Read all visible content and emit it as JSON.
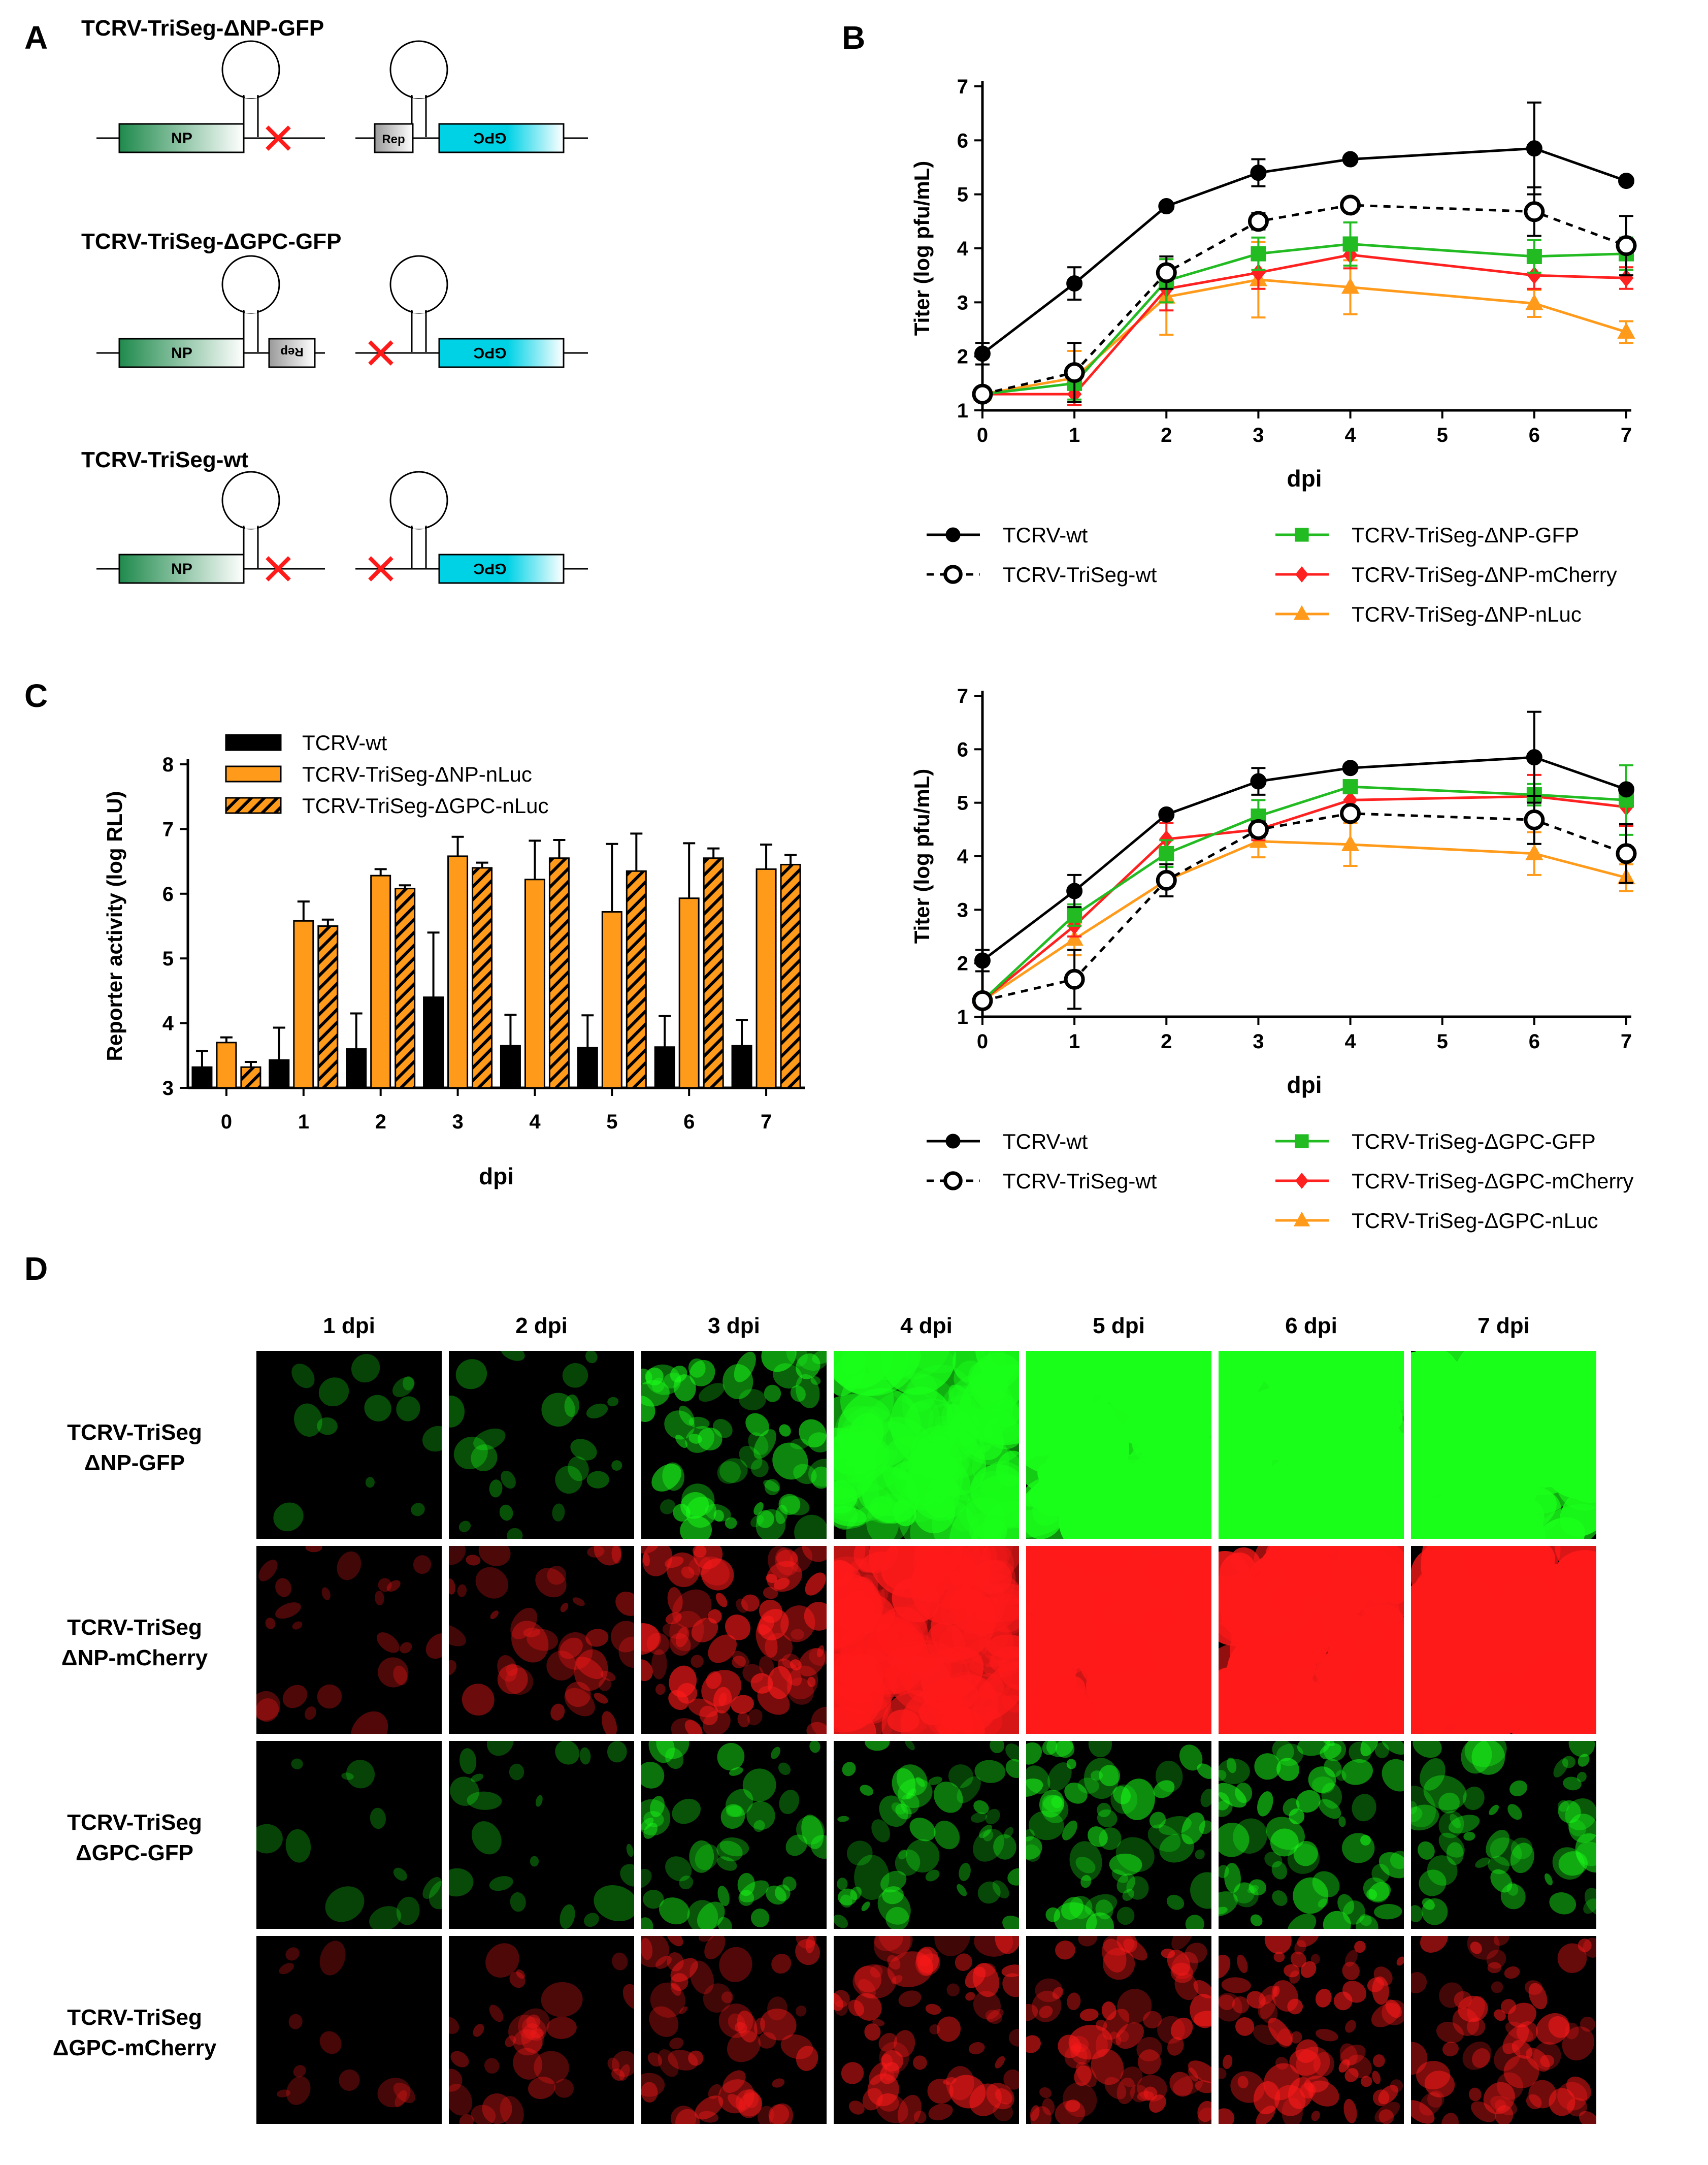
{
  "figure": {
    "panels": {
      "A": {
        "label": "A"
      },
      "B": {
        "label": "B"
      },
      "C": {
        "label": "C"
      },
      "D": {
        "label": "D"
      }
    }
  },
  "panelA": {
    "constructs": [
      {
        "title": "TCRV-TriSeg-ΔNP-GFP",
        "seg1": {
          "main": "NP",
          "main_color": "#1f8a4c",
          "tail": "",
          "tail_color": "",
          "cross_left": false,
          "cross_right": true
        },
        "seg2": {
          "main": "GPC",
          "main_color": "#00d2e6",
          "tail": "Rep",
          "tail_color": "#8a8a8a",
          "cross_left": false,
          "cross_right": false
        }
      },
      {
        "title": "TCRV-TriSeg-ΔGPC-GFP",
        "seg1": {
          "main": "NP",
          "main_color": "#1f8a4c",
          "tail": "Rep",
          "tail_color": "#8a8a8a",
          "cross_left": false,
          "cross_right": false
        },
        "seg2": {
          "main": "GPC",
          "main_color": "#00d2e6",
          "tail": "",
          "tail_color": "",
          "cross_left": true,
          "cross_right": false
        }
      },
      {
        "title": "TCRV-TriSeg-wt",
        "seg1": {
          "main": "NP",
          "main_color": "#1f8a4c",
          "tail": "",
          "tail_color": "",
          "cross_left": false,
          "cross_right": true
        },
        "seg2": {
          "main": "GPC",
          "main_color": "#00d2e6",
          "tail": "",
          "tail_color": "",
          "cross_left": true,
          "cross_right": false
        }
      }
    ],
    "cross_color": "#ff1a1a"
  },
  "chart_data": [
    {
      "id": "B-top",
      "type": "line",
      "title": "",
      "xlabel": "dpi",
      "ylabel": "Titer (log pfu/mL)",
      "x": [
        0,
        1,
        2,
        3,
        4,
        6,
        7
      ],
      "xticks": [
        0,
        1,
        2,
        3,
        4,
        5,
        6,
        7
      ],
      "xlim": [
        0,
        7
      ],
      "ylim": [
        1,
        7
      ],
      "yticks": [
        1,
        2,
        3,
        4,
        5,
        6,
        7
      ],
      "legend_position": "bottom",
      "series": [
        {
          "name": "TCRV-wt",
          "color": "#000000",
          "marker": "circle",
          "dashed": false,
          "hollow": false,
          "values": [
            2.05,
            3.35,
            4.78,
            5.4,
            5.65,
            5.85,
            5.25
          ],
          "errors": [
            0.2,
            0.3,
            0.05,
            0.25,
            0.05,
            0.85,
            0.05
          ]
        },
        {
          "name": "TCRV-TriSeg-wt",
          "color": "#000000",
          "marker": "circle",
          "dashed": true,
          "hollow": true,
          "values": [
            1.3,
            1.7,
            3.55,
            4.5,
            4.8,
            4.68,
            4.05
          ],
          "errors": [
            0.0,
            0.55,
            0.3,
            0.15,
            0.05,
            0.45,
            0.55
          ]
        },
        {
          "name": "TCRV-TriSeg-ΔNP-GFP",
          "color": "#22bb22",
          "marker": "square",
          "dashed": false,
          "hollow": false,
          "values": [
            1.3,
            1.5,
            3.4,
            3.9,
            4.08,
            3.85,
            3.9
          ],
          "errors": [
            0.0,
            0.3,
            0.4,
            0.3,
            0.4,
            0.3,
            0.3
          ]
        },
        {
          "name": "TCRV-TriSeg-ΔNP-mCherry",
          "color": "#ff2020",
          "marker": "diamond",
          "dashed": false,
          "hollow": false,
          "values": [
            1.3,
            1.3,
            3.25,
            3.55,
            3.88,
            3.5,
            3.45
          ],
          "errors": [
            0.0,
            0.2,
            0.4,
            0.3,
            0.25,
            0.25,
            0.2
          ]
        },
        {
          "name": "TCRV-TriSeg-ΔNP-nLuc",
          "color": "#ff9a1a",
          "marker": "triangle",
          "dashed": false,
          "hollow": false,
          "values": [
            1.3,
            1.6,
            3.1,
            3.42,
            3.28,
            2.98,
            2.45
          ],
          "errors": [
            0.0,
            0.5,
            0.7,
            0.7,
            0.5,
            0.25,
            0.2
          ]
        }
      ]
    },
    {
      "id": "B-bottom",
      "type": "line",
      "title": "",
      "xlabel": "dpi",
      "ylabel": "Titer (log pfu/mL)",
      "x": [
        0,
        1,
        2,
        3,
        4,
        6,
        7
      ],
      "xticks": [
        0,
        1,
        2,
        3,
        4,
        5,
        6,
        7
      ],
      "xlim": [
        0,
        7
      ],
      "ylim": [
        1,
        7
      ],
      "yticks": [
        1,
        2,
        3,
        4,
        5,
        6,
        7
      ],
      "legend_position": "bottom",
      "series": [
        {
          "name": "TCRV-wt",
          "color": "#000000",
          "marker": "circle",
          "dashed": false,
          "hollow": false,
          "values": [
            2.05,
            3.35,
            4.78,
            5.4,
            5.65,
            5.85,
            5.25
          ],
          "errors": [
            0.2,
            0.3,
            0.05,
            0.25,
            0.05,
            0.85,
            0.05
          ]
        },
        {
          "name": "TCRV-TriSeg-wt",
          "color": "#000000",
          "marker": "circle",
          "dashed": true,
          "hollow": true,
          "values": [
            1.3,
            1.7,
            3.55,
            4.5,
            4.8,
            4.68,
            4.05
          ],
          "errors": [
            0.0,
            0.55,
            0.3,
            0.15,
            0.05,
            0.45,
            0.55
          ]
        },
        {
          "name": "TCRV-TriSeg-ΔGPC-GFP",
          "color": "#22bb22",
          "marker": "square",
          "dashed": false,
          "hollow": false,
          "values": [
            1.3,
            2.9,
            4.05,
            4.75,
            5.3,
            5.15,
            5.05
          ],
          "errors": [
            0.0,
            0.2,
            0.25,
            0.3,
            0.05,
            0.2,
            0.65
          ]
        },
        {
          "name": "TCRV-TriSeg-ΔGPC-mCherry",
          "color": "#ff2020",
          "marker": "diamond",
          "dashed": false,
          "hollow": false,
          "values": [
            1.3,
            2.7,
            4.32,
            4.5,
            5.05,
            5.12,
            4.92
          ],
          "errors": [
            0.0,
            0.2,
            0.3,
            0.2,
            0.3,
            0.4,
            0.35
          ]
        },
        {
          "name": "TCRV-TriSeg-ΔGPC-nLuc",
          "color": "#ff9a1a",
          "marker": "triangle",
          "dashed": false,
          "hollow": false,
          "values": [
            1.3,
            2.45,
            3.55,
            4.28,
            4.22,
            4.05,
            3.6
          ],
          "errors": [
            0.0,
            0.3,
            0.3,
            0.3,
            0.4,
            0.4,
            0.25
          ]
        }
      ]
    },
    {
      "id": "C",
      "type": "bar",
      "title": "",
      "xlabel": "dpi",
      "ylabel": "Reporter activity (log RLU)",
      "categories": [
        "0",
        "1",
        "2",
        "3",
        "4",
        "5",
        "6",
        "7"
      ],
      "ylim": [
        3,
        8
      ],
      "yticks": [
        3,
        4,
        5,
        6,
        7,
        8
      ],
      "legend_position": "top",
      "series": [
        {
          "name": "TCRV-wt",
          "color": "#000000",
          "hatched": false,
          "values": [
            3.32,
            3.43,
            3.6,
            4.4,
            3.65,
            3.62,
            3.63,
            3.65
          ],
          "errors": [
            0.25,
            0.5,
            0.55,
            1.0,
            0.48,
            0.5,
            0.48,
            0.4
          ]
        },
        {
          "name": "TCRV-TriSeg-ΔNP-nLuc",
          "color": "#ff9a1a",
          "hatched": false,
          "values": [
            3.7,
            5.58,
            6.28,
            6.58,
            6.22,
            5.72,
            5.93,
            6.38
          ],
          "errors": [
            0.08,
            0.3,
            0.1,
            0.3,
            0.6,
            1.05,
            0.85,
            0.38
          ]
        },
        {
          "name": "TCRV-TriSeg-ΔGPC-nLuc",
          "color": "#ff9a1a",
          "hatched": true,
          "values": [
            3.32,
            5.5,
            6.08,
            6.4,
            6.55,
            6.35,
            6.55,
            6.45
          ],
          "errors": [
            0.08,
            0.1,
            0.05,
            0.08,
            0.28,
            0.58,
            0.15,
            0.15
          ]
        }
      ]
    }
  ],
  "panelD": {
    "columns": [
      "1 dpi",
      "2 dpi",
      "3 dpi",
      "4 dpi",
      "5 dpi",
      "6 dpi",
      "7 dpi"
    ],
    "rows": [
      {
        "line1": "TCRV-TriSeg",
        "line2": "ΔNP-GFP",
        "color": "#1aff1a",
        "intensity": [
          0.05,
          0.12,
          0.45,
          0.75,
          0.9,
          0.97,
          0.95
        ]
      },
      {
        "line1": "TCRV-TriSeg",
        "line2": "ΔNP-mCherry",
        "color": "#ff1a1a",
        "intensity": [
          0.12,
          0.25,
          0.55,
          0.8,
          0.85,
          0.9,
          0.95
        ]
      },
      {
        "line1": "TCRV-TriSeg",
        "line2": "ΔGPC-GFP",
        "color": "#1aff1a",
        "intensity": [
          0.04,
          0.1,
          0.3,
          0.35,
          0.4,
          0.45,
          0.35
        ]
      },
      {
        "line1": "TCRV-TriSeg",
        "line2": "ΔGPC-mCherry",
        "color": "#ff1a1a",
        "intensity": [
          0.04,
          0.2,
          0.35,
          0.45,
          0.45,
          0.5,
          0.4
        ]
      }
    ]
  }
}
